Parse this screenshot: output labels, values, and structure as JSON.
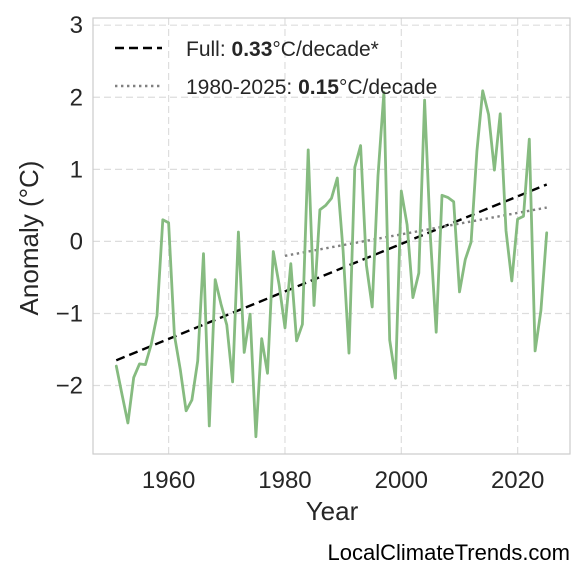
{
  "chart_data": {
    "type": "line",
    "title": "",
    "xlabel": "Year",
    "ylabel": "Anomaly (°C)",
    "xlim": [
      1947,
      2029
    ],
    "ylim": [
      -2.95,
      3.1
    ],
    "x_ticks": [
      1960,
      1980,
      2000,
      2020
    ],
    "y_ticks": [
      3,
      2,
      1,
      0,
      -1,
      -2
    ],
    "y_tick_labels": [
      "3",
      "2",
      "1",
      "0",
      "−1",
      "−2"
    ],
    "grid": true,
    "legend_position": "top-left",
    "x": [
      1951,
      1952,
      1953,
      1954,
      1955,
      1956,
      1957,
      1958,
      1959,
      1960,
      1961,
      1962,
      1963,
      1964,
      1965,
      1966,
      1967,
      1968,
      1969,
      1970,
      1971,
      1972,
      1973,
      1974,
      1975,
      1976,
      1977,
      1978,
      1979,
      1980,
      1981,
      1982,
      1983,
      1984,
      1985,
      1986,
      1987,
      1988,
      1989,
      1990,
      1991,
      1992,
      1993,
      1994,
      1995,
      1996,
      1997,
      1998,
      1999,
      2000,
      2001,
      2002,
      2003,
      2004,
      2005,
      2006,
      2007,
      2008,
      2009,
      2010,
      2011,
      2012,
      2013,
      2014,
      2015,
      2016,
      2017,
      2018,
      2019,
      2020,
      2021,
      2022,
      2023,
      2024,
      2025
    ],
    "series": [
      {
        "color": "#86bb80",
        "values": [
          -1.73,
          -2.13,
          -2.52,
          -1.89,
          -1.7,
          -1.71,
          -1.43,
          -1.03,
          0.3,
          0.26,
          -1.3,
          -1.78,
          -2.35,
          -2.2,
          -1.66,
          -0.17,
          -2.56,
          -0.53,
          -0.87,
          -1.16,
          -1.95,
          0.13,
          -1.54,
          -1.01,
          -2.71,
          -1.35,
          -1.83,
          -0.14,
          -0.6,
          -1.2,
          -0.31,
          -1.38,
          -1.15,
          1.27,
          -0.89,
          0.44,
          0.5,
          0.6,
          0.88,
          -0.13,
          -1.55,
          1.03,
          1.33,
          -0.33,
          -0.91,
          0.91,
          2.07,
          -1.37,
          -1.9,
          0.7,
          0.23,
          -0.78,
          -0.44,
          1.96,
          0.06,
          -1.26,
          0.64,
          0.61,
          0.55,
          -0.7,
          -0.25,
          -0.01,
          1.25,
          2.09,
          1.76,
          0.99,
          1.77,
          0.15,
          -0.55,
          0.31,
          0.35,
          1.42,
          -1.52,
          -0.96,
          0.12
        ]
      }
    ],
    "trend_lines": [
      {
        "label_prefix": "Full: ",
        "label_value": "0.33",
        "label_suffix": "°C/decade*",
        "style": "dashed",
        "color": "#000000",
        "x": [
          1951,
          2025
        ],
        "y": [
          -1.65,
          0.79
        ]
      },
      {
        "label_prefix": "1980-2025: ",
        "label_value": "0.15",
        "label_suffix": "°C/decade",
        "style": "dotted",
        "color": "#808080",
        "x": [
          1980,
          2025
        ],
        "y": [
          -0.2,
          0.47
        ]
      }
    ]
  },
  "watermark": "LocalClimateTrends.com"
}
